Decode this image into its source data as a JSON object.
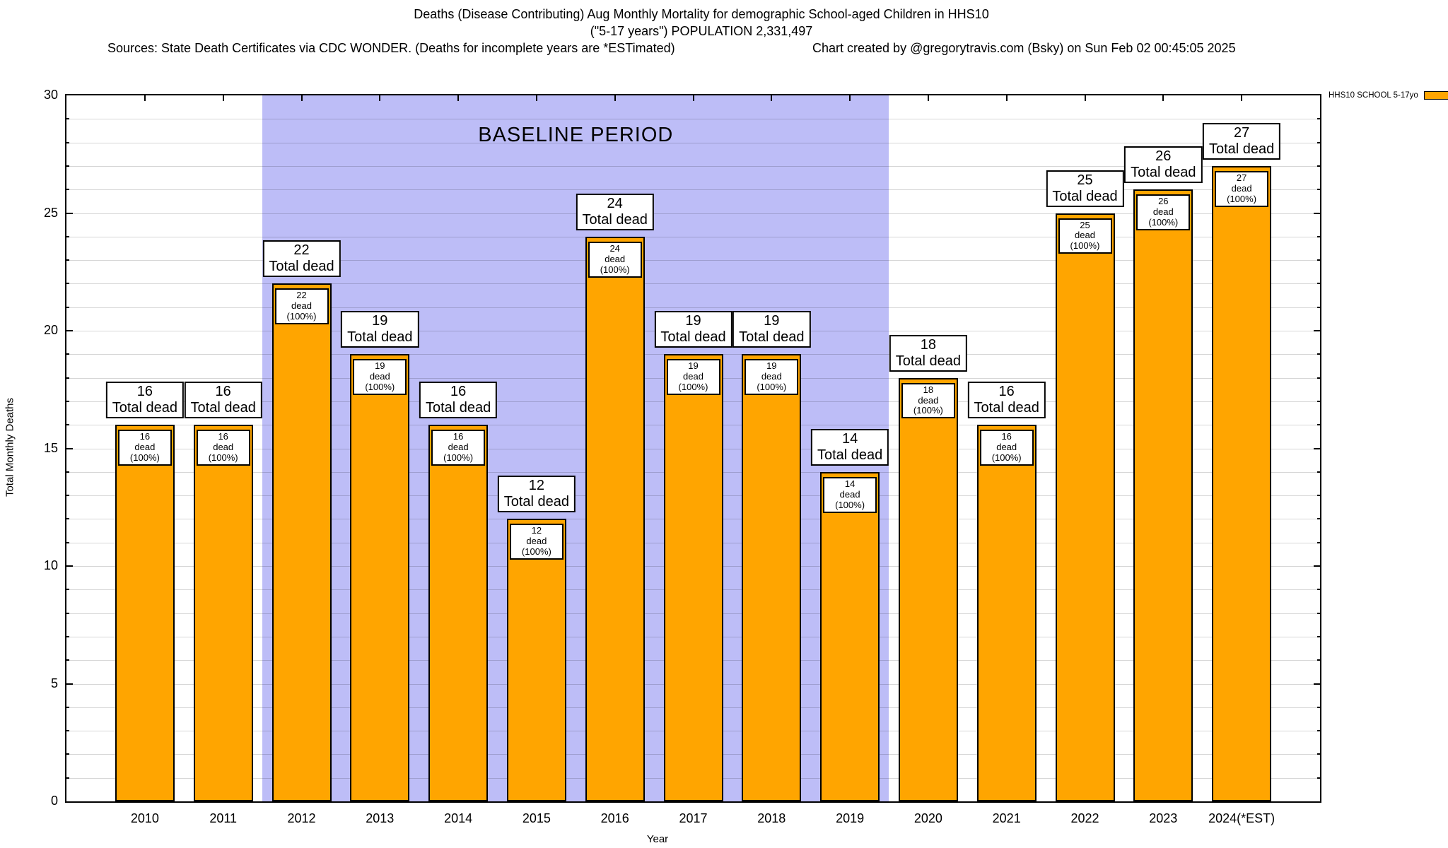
{
  "header": {
    "title_line1": "Deaths (Disease Contributing) Aug Monthly Mortality for demographic School-aged Children in HHS10",
    "title_line2": "(\"5-17 years\") POPULATION 2,331,497",
    "sources_note": "Sources: State Death Certificates via CDC WONDER. (Deaths for incomplete years are *ESTimated)",
    "credit": "Chart created by @gregorytravis.com (Bsky) on Sun Feb 02 00:45:05 2025"
  },
  "legend": {
    "label": "HHS10 SCHOOL 5-17yo",
    "swatch_color": "#ffa500"
  },
  "chart_data": {
    "type": "bar",
    "title": "Deaths (Disease Contributing) Aug Monthly Mortality for demographic School-aged Children in HHS10",
    "xlabel": "Year",
    "ylabel": "Total Monthly Deaths",
    "ylim": [
      0,
      30
    ],
    "yticks": [
      0,
      5,
      10,
      15,
      20,
      25,
      30
    ],
    "grid": "horizontal gridlines every 1 unit, major tick labels every 5",
    "legend_position": "top-right outside plot",
    "categories": [
      "2010",
      "2011",
      "2012",
      "2013",
      "2014",
      "2015",
      "2016",
      "2017",
      "2018",
      "2019",
      "2020",
      "2021",
      "2022",
      "2023",
      "2024(*EST)"
    ],
    "series": [
      {
        "name": "HHS10 SCHOOL 5-17yo",
        "color": "#ffa500",
        "values": [
          16,
          16,
          22,
          19,
          16,
          12,
          24,
          19,
          19,
          14,
          18,
          16,
          25,
          26,
          27
        ]
      }
    ],
    "bar_top_label_suffix": "Total dead",
    "bar_inner_label_suffix": "dead (100%)",
    "baseline_period": {
      "label": "BASELINE PERIOD",
      "start": "2012",
      "end": "2019",
      "color": "#bdbdf7"
    }
  }
}
